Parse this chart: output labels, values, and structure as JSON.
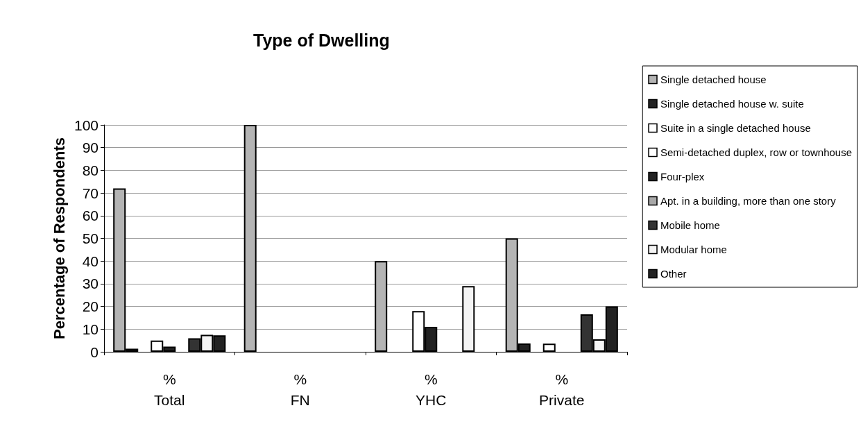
{
  "chart_data": {
    "type": "bar",
    "title": "Type of Dwelling",
    "ylabel": "Percentage of Respondents",
    "categories": [
      "%\nTotal",
      "%\nFN",
      "%\nYHC",
      "%\nPrivate"
    ],
    "series": [
      {
        "name": "Single detached house",
        "color": "#b4b4b4",
        "values": [
          72,
          100,
          40,
          50
        ]
      },
      {
        "name": "Single detached house w. suite",
        "color": "#222222",
        "values": [
          1.4,
          null,
          null,
          3.7
        ]
      },
      {
        "name": "Suite in a single detached house",
        "color": "#ffffff",
        "values": [
          null,
          null,
          null,
          null
        ]
      },
      {
        "name": "Semi-detached duplex, row or townhouse",
        "color": "#ffffff",
        "values": [
          5,
          null,
          18,
          3.6
        ]
      },
      {
        "name": "Four-plex",
        "color": "#222222",
        "values": [
          2.3,
          null,
          11,
          null
        ]
      },
      {
        "name": "Apt. in a building, more than one story",
        "color": "#a8a8a8",
        "values": [
          null,
          null,
          null,
          null
        ]
      },
      {
        "name": "Mobile home",
        "color": "#333333",
        "values": [
          6,
          null,
          null,
          16.5
        ]
      },
      {
        "name": "Modular home",
        "color": "#f4f4f4",
        "values": [
          7.5,
          null,
          29,
          5.5
        ]
      },
      {
        "name": "Other",
        "color": "#222222",
        "values": [
          7.3,
          null,
          null,
          20
        ]
      }
    ],
    "ylim": [
      0,
      100
    ],
    "yticks": [
      0,
      10,
      20,
      30,
      40,
      50,
      60,
      70,
      80,
      90,
      100
    ],
    "grid": "y",
    "legend": "right"
  }
}
